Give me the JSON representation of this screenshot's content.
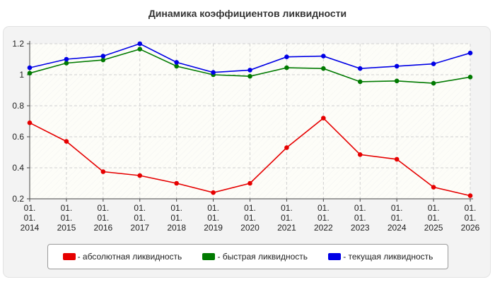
{
  "chart_data": {
    "type": "line",
    "title": "Динамика коэффициентов ликвидности",
    "x": [
      "01.01.2014",
      "01.01.2015",
      "01.01.2016",
      "01.01.2017",
      "01.01.2018",
      "01.01.2019",
      "01.01.2020",
      "01.01.2021",
      "01.01.2022",
      "01.01.2023",
      "01.01.2024",
      "01.01.2025",
      "01.01.2026"
    ],
    "x_tick_lines": [
      [
        "01.",
        "01.",
        "2014"
      ],
      [
        "01.",
        "01.",
        "2015"
      ],
      [
        "01.",
        "01.",
        "2016"
      ],
      [
        "01.",
        "01.",
        "2017"
      ],
      [
        "01.",
        "01.",
        "2018"
      ],
      [
        "01.",
        "01.",
        "2019"
      ],
      [
        "01.",
        "01.",
        "2020"
      ],
      [
        "01.",
        "01.",
        "2021"
      ],
      [
        "01.",
        "01.",
        "2022"
      ],
      [
        "01.",
        "01.",
        "2023"
      ],
      [
        "01.",
        "01.",
        "2024"
      ],
      [
        "01.",
        "01.",
        "2025"
      ],
      [
        "01.",
        "01.",
        "2026"
      ]
    ],
    "yticks": [
      "0.2",
      "0.4",
      "0.6",
      "0.8",
      "1",
      "1.2"
    ],
    "ylim": [
      0.2,
      1.2
    ],
    "grid": true,
    "legend_position": "bottom",
    "series": [
      {
        "name": "- абсолютная ликвидность",
        "color": "#e60000",
        "values": [
          0.69,
          0.57,
          0.375,
          0.35,
          0.3,
          0.24,
          0.3,
          0.53,
          0.72,
          0.485,
          0.455,
          0.275,
          0.22
        ]
      },
      {
        "name": "- быстрая ликвидность",
        "color": "#007a00",
        "values": [
          1.01,
          1.075,
          1.095,
          1.165,
          1.055,
          1.0,
          0.99,
          1.045,
          1.04,
          0.955,
          0.96,
          0.945,
          0.985
        ]
      },
      {
        "name": "- текущая ликвидность",
        "color": "#0000e6",
        "values": [
          1.045,
          1.1,
          1.12,
          1.2,
          1.08,
          1.015,
          1.03,
          1.115,
          1.12,
          1.04,
          1.055,
          1.07,
          1.14
        ]
      }
    ]
  }
}
